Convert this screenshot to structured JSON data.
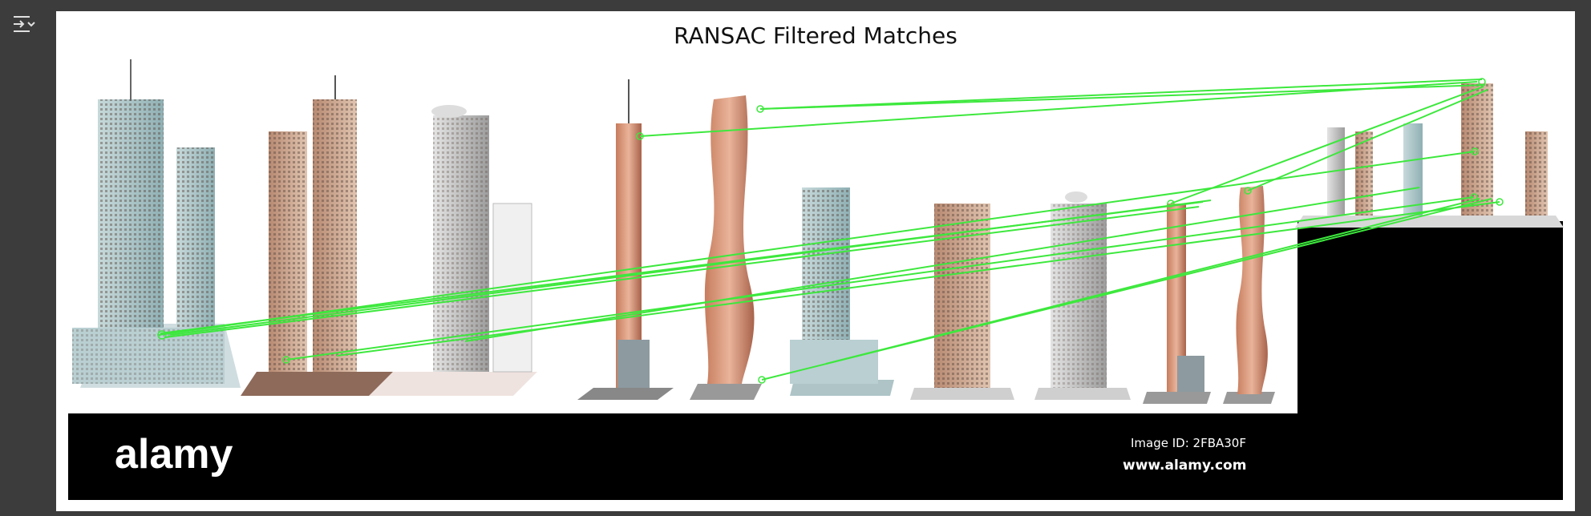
{
  "toolbar": {
    "toggle_icon": "collapse-output-icon"
  },
  "figure": {
    "title": "RANSAC Filtered Matches",
    "watermark": {
      "logo": "alamy",
      "image_id": "Image ID: 2FBA30F",
      "url": "www.alamy.com"
    },
    "match_color": "#3de83d"
  }
}
